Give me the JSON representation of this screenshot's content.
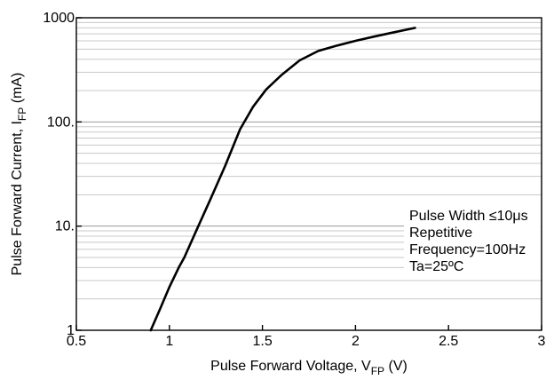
{
  "chart_data": {
    "type": "line",
    "title": "",
    "xlabel": {
      "prefix": "Pulse Forward Voltage, V",
      "sub": "FP",
      "suffix": " (V)"
    },
    "ylabel": {
      "prefix": "Pulse Forward Current, I",
      "sub": "FP",
      "suffix": " (mA)"
    },
    "xlim": [
      0.5,
      3
    ],
    "ylim": [
      1,
      1000
    ],
    "yscale": "log",
    "x_ticks": [
      0.5,
      1,
      1.5,
      2,
      2.5,
      3
    ],
    "x_tick_labels": [
      "0.5",
      "1",
      "1.5",
      "2",
      "2.5",
      "3"
    ],
    "y_ticks": [
      1,
      10,
      100,
      1000
    ],
    "y_tick_labels": [
      "1",
      "10.",
      "100.",
      "1000"
    ],
    "grid": true,
    "series": [
      {
        "x": [
          0.9,
          0.95,
          1.0,
          1.05,
          1.08,
          1.15,
          1.22,
          1.3,
          1.38,
          1.45,
          1.52,
          1.6,
          1.7,
          1.8,
          1.9,
          2.0,
          2.1,
          2.2,
          2.32
        ],
        "y": [
          1.0,
          1.6,
          2.6,
          4.0,
          5.0,
          9.5,
          18,
          38,
          85,
          140,
          205,
          280,
          390,
          480,
          540,
          600,
          660,
          720,
          800
        ]
      }
    ],
    "annotation": {
      "lines": [
        "Pulse Width ≤10μs",
        "Repetitive",
        "Frequency=100Hz",
        "Ta=25ºC"
      ],
      "position": "lower-right"
    }
  }
}
